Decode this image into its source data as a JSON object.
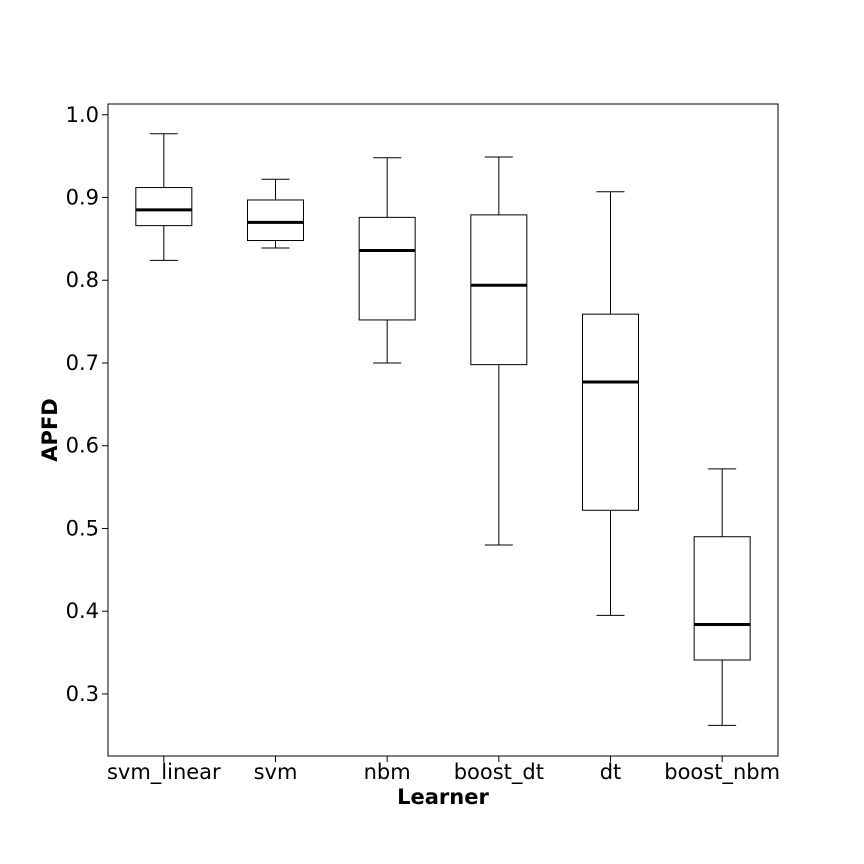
{
  "chart_data": {
    "type": "box",
    "xlabel": "Learner",
    "ylabel": "APFD",
    "ylim": [
      0.225,
      1.013
    ],
    "yticks": [
      0.3,
      0.4,
      0.5,
      0.6,
      0.7,
      0.8,
      0.9,
      1.0
    ],
    "ytick_labels": [
      "0.3",
      "0.4",
      "0.5",
      "0.6",
      "0.7",
      "0.8",
      "0.9",
      "1.0"
    ],
    "grid": false,
    "categories": [
      "svm_linear",
      "svm",
      "nbm",
      "boost_dt",
      "dt",
      "boost_nbm"
    ],
    "boxes": [
      {
        "whisker_low": 0.824,
        "q1": 0.866,
        "median": 0.885,
        "q3": 0.912,
        "whisker_high": 0.977
      },
      {
        "whisker_low": 0.839,
        "q1": 0.848,
        "median": 0.87,
        "q3": 0.897,
        "whisker_high": 0.922
      },
      {
        "whisker_low": 0.7,
        "q1": 0.752,
        "median": 0.836,
        "q3": 0.876,
        "whisker_high": 0.948
      },
      {
        "whisker_low": 0.48,
        "q1": 0.698,
        "median": 0.794,
        "q3": 0.879,
        "whisker_high": 0.949
      },
      {
        "whisker_low": 0.395,
        "q1": 0.522,
        "median": 0.677,
        "q3": 0.759,
        "whisker_high": 0.907
      },
      {
        "whisker_low": 0.262,
        "q1": 0.341,
        "median": 0.384,
        "q3": 0.49,
        "whisker_high": 0.572
      }
    ]
  }
}
